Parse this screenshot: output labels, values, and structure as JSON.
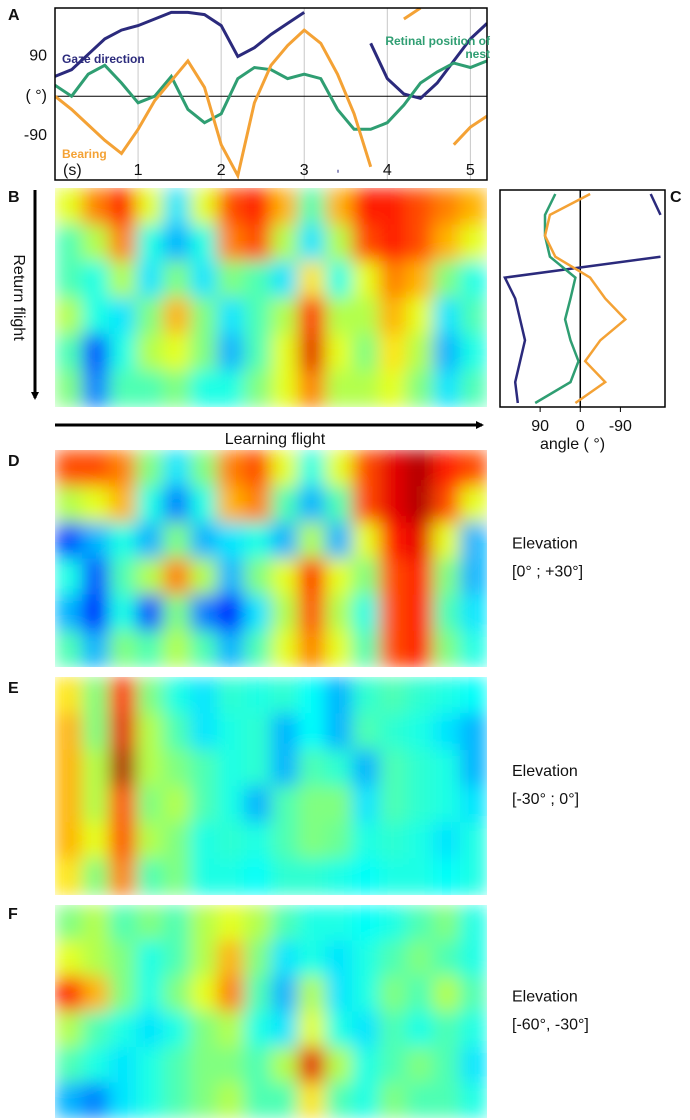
{
  "chart_data": [
    {
      "type": "line",
      "panel": "A",
      "x": [
        0,
        0.2,
        0.4,
        0.6,
        0.8,
        1.0,
        1.2,
        1.4,
        1.6,
        1.8,
        2.0,
        2.2,
        2.4,
        2.6,
        2.8,
        3.0,
        3.2,
        3.4,
        3.6,
        3.8,
        4.0,
        4.2,
        4.4,
        4.6,
        4.8,
        5.0,
        5.2
      ],
      "xlim": [
        0,
        5.2
      ],
      "xticks": [
        {
          "value": 0,
          "label": "(s)"
        },
        1,
        2,
        3,
        4,
        5
      ],
      "ylim": [
        -190,
        200
      ],
      "yticks": [
        90,
        {
          "value": 0,
          "label": "( °)"
        },
        -90
      ],
      "grid": true,
      "series": [
        {
          "name": "Gaze direction",
          "color": "#2b2a7c",
          "values": [
            45,
            60,
            95,
            130,
            150,
            160,
            175,
            190,
            190,
            185,
            160,
            90,
            110,
            140,
            165,
            190,
            null,
            -170,
            null,
            120,
            40,
            5,
            -5,
            30,
            80,
            130,
            165
          ]
        },
        {
          "name": "Retinal position of nest",
          "color": "#2f9e72",
          "values": [
            25,
            0,
            50,
            70,
            30,
            -15,
            0,
            45,
            -30,
            -60,
            -40,
            40,
            65,
            60,
            40,
            50,
            40,
            -30,
            -75,
            -75,
            -60,
            -20,
            30,
            55,
            75,
            65,
            80
          ]
        },
        {
          "name": "Bearing",
          "color": "#f4a235",
          "values": [
            0,
            -30,
            -65,
            -100,
            -130,
            -75,
            -10,
            35,
            80,
            20,
            -110,
            -180,
            -15,
            70,
            115,
            150,
            120,
            50,
            -40,
            -160,
            null,
            175,
            200,
            null,
            -110,
            -70,
            -45
          ]
        }
      ]
    },
    {
      "type": "heatmap",
      "panel": "B",
      "ylabel": "Return flight",
      "xlabel": "Learning flight",
      "z": [
        [
          0.6,
          0.75,
          0.85,
          0.6,
          0.35,
          0.6,
          0.8,
          0.85,
          0.7,
          0.45,
          0.7,
          0.85,
          0.85,
          0.8,
          0.75,
          0.7
        ],
        [
          0.45,
          0.55,
          0.75,
          0.4,
          0.3,
          0.4,
          0.75,
          0.8,
          0.55,
          0.35,
          0.55,
          0.8,
          0.85,
          0.8,
          0.7,
          0.6
        ],
        [
          0.45,
          0.4,
          0.55,
          0.35,
          0.5,
          0.35,
          0.5,
          0.45,
          0.35,
          0.65,
          0.4,
          0.6,
          0.75,
          0.7,
          0.5,
          0.4
        ],
        [
          0.55,
          0.4,
          0.35,
          0.5,
          0.7,
          0.5,
          0.35,
          0.45,
          0.55,
          0.85,
          0.55,
          0.55,
          0.7,
          0.6,
          0.35,
          0.45
        ],
        [
          0.45,
          0.2,
          0.4,
          0.55,
          0.6,
          0.5,
          0.3,
          0.45,
          0.6,
          0.9,
          0.6,
          0.5,
          0.65,
          0.55,
          0.3,
          0.4
        ],
        [
          0.5,
          0.25,
          0.45,
          0.45,
          0.5,
          0.4,
          0.4,
          0.5,
          0.6,
          0.75,
          0.55,
          0.55,
          0.6,
          0.5,
          0.35,
          0.45
        ]
      ]
    },
    {
      "type": "line",
      "panel": "C",
      "orientation": "vertical",
      "categories": [
        null,
        null,
        null,
        null,
        null,
        null,
        null,
        null,
        null,
        null,
        null
      ],
      "xlim": [
        180,
        -190
      ],
      "xticks": [
        90,
        0,
        -90
      ],
      "xlabel": "angle ( °)",
      "series": [
        {
          "color": "#2b2a7c",
          "values": [
            -158,
            -180,
            null,
            -180,
            169,
            146,
            135,
            124,
            135,
            146,
            140
          ]
        },
        {
          "color": "#2f9e72",
          "values": [
            56,
            79,
            79,
            68,
            11,
            22,
            34,
            22,
            4,
            22,
            101
          ]
        },
        {
          "color": "#f4a235",
          "values": [
            -22,
            68,
            79,
            56,
            -22,
            -56,
            -101,
            -45,
            -11,
            -56,
            11
          ]
        }
      ]
    },
    {
      "type": "heatmap",
      "panel": "D",
      "label": "Elevation",
      "range": "[0° ; +30°]",
      "z": [
        [
          0.8,
          0.8,
          0.75,
          0.5,
          0.35,
          0.5,
          0.75,
          0.8,
          0.6,
          0.4,
          0.6,
          0.8,
          0.9,
          0.95,
          0.85,
          0.8
        ],
        [
          0.55,
          0.6,
          0.7,
          0.4,
          0.25,
          0.4,
          0.7,
          0.75,
          0.45,
          0.3,
          0.45,
          0.8,
          0.9,
          0.95,
          0.8,
          0.6
        ],
        [
          0.2,
          0.3,
          0.4,
          0.3,
          0.5,
          0.3,
          0.35,
          0.4,
          0.3,
          0.55,
          0.3,
          0.6,
          0.85,
          0.9,
          0.6,
          0.3
        ],
        [
          0.4,
          0.2,
          0.45,
          0.55,
          0.75,
          0.55,
          0.3,
          0.5,
          0.6,
          0.85,
          0.6,
          0.5,
          0.8,
          0.85,
          0.5,
          0.3
        ],
        [
          0.3,
          0.15,
          0.4,
          0.2,
          0.5,
          0.25,
          0.15,
          0.35,
          0.55,
          0.8,
          0.55,
          0.4,
          0.8,
          0.85,
          0.45,
          0.35
        ],
        [
          0.45,
          0.3,
          0.5,
          0.45,
          0.55,
          0.45,
          0.3,
          0.45,
          0.6,
          0.75,
          0.6,
          0.45,
          0.8,
          0.85,
          0.5,
          0.4
        ]
      ]
    },
    {
      "type": "heatmap",
      "panel": "E",
      "label": "Elevation",
      "range": "[-30° ; 0°]",
      "z": [
        [
          0.65,
          0.5,
          0.85,
          0.5,
          0.4,
          0.35,
          0.42,
          0.4,
          0.42,
          0.38,
          0.3,
          0.42,
          0.45,
          0.42,
          0.4,
          0.38
        ],
        [
          0.7,
          0.5,
          0.9,
          0.55,
          0.45,
          0.35,
          0.4,
          0.42,
          0.3,
          0.38,
          0.3,
          0.45,
          0.42,
          0.4,
          0.35,
          0.3
        ],
        [
          0.7,
          0.55,
          0.95,
          0.55,
          0.5,
          0.45,
          0.4,
          0.42,
          0.3,
          0.45,
          0.42,
          0.3,
          0.45,
          0.42,
          0.4,
          0.3
        ],
        [
          0.7,
          0.55,
          0.8,
          0.5,
          0.55,
          0.45,
          0.4,
          0.3,
          0.45,
          0.5,
          0.5,
          0.35,
          0.45,
          0.42,
          0.4,
          0.35
        ],
        [
          0.7,
          0.6,
          0.8,
          0.55,
          0.5,
          0.4,
          0.42,
          0.4,
          0.45,
          0.5,
          0.48,
          0.4,
          0.42,
          0.4,
          0.35,
          0.4
        ],
        [
          0.65,
          0.5,
          0.75,
          0.45,
          0.5,
          0.4,
          0.4,
          0.38,
          0.42,
          0.42,
          0.4,
          0.38,
          0.4,
          0.4,
          0.38,
          0.4
        ]
      ]
    },
    {
      "type": "heatmap",
      "panel": "F",
      "label": "Elevation",
      "range": "[-60°, -30°]",
      "z": [
        [
          0.5,
          0.55,
          0.45,
          0.5,
          0.45,
          0.55,
          0.6,
          0.55,
          0.45,
          0.4,
          0.4,
          0.38,
          0.4,
          0.45,
          0.5,
          0.4
        ],
        [
          0.6,
          0.55,
          0.5,
          0.4,
          0.45,
          0.55,
          0.7,
          0.5,
          0.35,
          0.4,
          0.35,
          0.4,
          0.45,
          0.5,
          0.45,
          0.4
        ],
        [
          0.85,
          0.7,
          0.5,
          0.4,
          0.5,
          0.6,
          0.75,
          0.45,
          0.3,
          0.55,
          0.35,
          0.4,
          0.5,
          0.45,
          0.55,
          0.45
        ],
        [
          0.55,
          0.45,
          0.4,
          0.35,
          0.4,
          0.5,
          0.55,
          0.4,
          0.35,
          0.6,
          0.4,
          0.35,
          0.45,
          0.4,
          0.45,
          0.4
        ],
        [
          0.45,
          0.4,
          0.35,
          0.4,
          0.45,
          0.5,
          0.5,
          0.45,
          0.55,
          0.9,
          0.55,
          0.4,
          0.45,
          0.5,
          0.45,
          0.35
        ],
        [
          0.3,
          0.25,
          0.35,
          0.4,
          0.45,
          0.5,
          0.55,
          0.45,
          0.45,
          0.65,
          0.45,
          0.4,
          0.5,
          0.45,
          0.45,
          0.4
        ]
      ]
    }
  ]
}
